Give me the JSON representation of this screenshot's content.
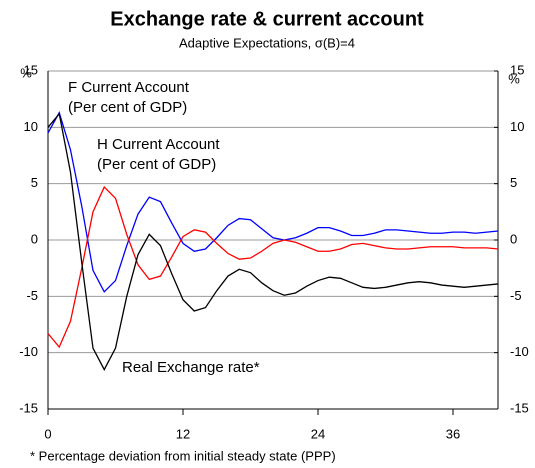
{
  "chart_data": {
    "type": "line",
    "title": "Exchange rate & current account",
    "subtitle": "Adaptive Expectations, σ(B)=4",
    "ylabel": "%",
    "y2label": "%",
    "footnote": "* Percentage deviation from initial steady state (PPP)",
    "x": [
      0,
      1,
      2,
      3,
      4,
      5,
      6,
      7,
      8,
      9,
      10,
      11,
      12,
      13,
      14,
      15,
      16,
      17,
      18,
      19,
      20,
      21,
      22,
      23,
      24,
      25,
      26,
      27,
      28,
      29,
      30,
      31,
      32,
      33,
      34,
      35,
      36,
      37,
      38,
      39,
      40
    ],
    "xlim": [
      0,
      40
    ],
    "xticks": [
      0,
      12,
      24,
      36
    ],
    "ylim": [
      -15,
      15
    ],
    "yticks": [
      -15,
      -10,
      -5,
      0,
      5,
      10,
      15
    ],
    "y2lim": [
      -15,
      15
    ],
    "y2ticks": [
      -15,
      -10,
      -5,
      0,
      5,
      10,
      15
    ],
    "grid": true,
    "series": [
      {
        "name": "F  Current Account",
        "subname": "(Per cent of GDP)",
        "color": "#0000ff",
        "values": [
          9.5,
          11.3,
          8,
          3,
          -2.7,
          -4.6,
          -3.6,
          -0.5,
          2.3,
          3.8,
          3.4,
          1.5,
          -0.3,
          -1,
          -0.8,
          0.2,
          1.3,
          1.9,
          1.8,
          1.0,
          0.2,
          0,
          0.2,
          0.6,
          1.1,
          1.1,
          0.8,
          0.4,
          0.4,
          0.6,
          0.9,
          0.9,
          0.8,
          0.7,
          0.6,
          0.6,
          0.7,
          0.7,
          0.6,
          0.7,
          0.8
        ]
      },
      {
        "name": "H  Current Account",
        "subname": "(Per cent of GDP)",
        "color": "#ff0000",
        "values": [
          -8.3,
          -9.5,
          -7.2,
          -2.5,
          2.5,
          4.7,
          3.7,
          0.5,
          -2.2,
          -3.5,
          -3.2,
          -1.5,
          0.3,
          0.9,
          0.7,
          -0.3,
          -1.2,
          -1.7,
          -1.6,
          -1.0,
          -0.3,
          0,
          -0.2,
          -0.6,
          -1.0,
          -1.0,
          -0.8,
          -0.4,
          -0.3,
          -0.5,
          -0.7,
          -0.8,
          -0.8,
          -0.7,
          -0.6,
          -0.6,
          -0.6,
          -0.7,
          -0.7,
          -0.7,
          -0.8
        ]
      },
      {
        "name": "Real Exchange rate*",
        "color": "#000000",
        "axis": "y2",
        "values": [
          10,
          11.2,
          6,
          -2,
          -9.6,
          -11.5,
          -9.6,
          -5,
          -1.3,
          0.5,
          -0.5,
          -3,
          -5.3,
          -6.3,
          -6,
          -4.5,
          -3.2,
          -2.6,
          -2.9,
          -3.8,
          -4.5,
          -4.9,
          -4.7,
          -4.1,
          -3.6,
          -3.3,
          -3.4,
          -3.8,
          -4.2,
          -4.3,
          -4.2,
          -4.0,
          -3.8,
          -3.7,
          -3.8,
          -4.0,
          -4.1,
          -4.2,
          -4.1,
          -4.0,
          -3.9
        ]
      }
    ]
  }
}
